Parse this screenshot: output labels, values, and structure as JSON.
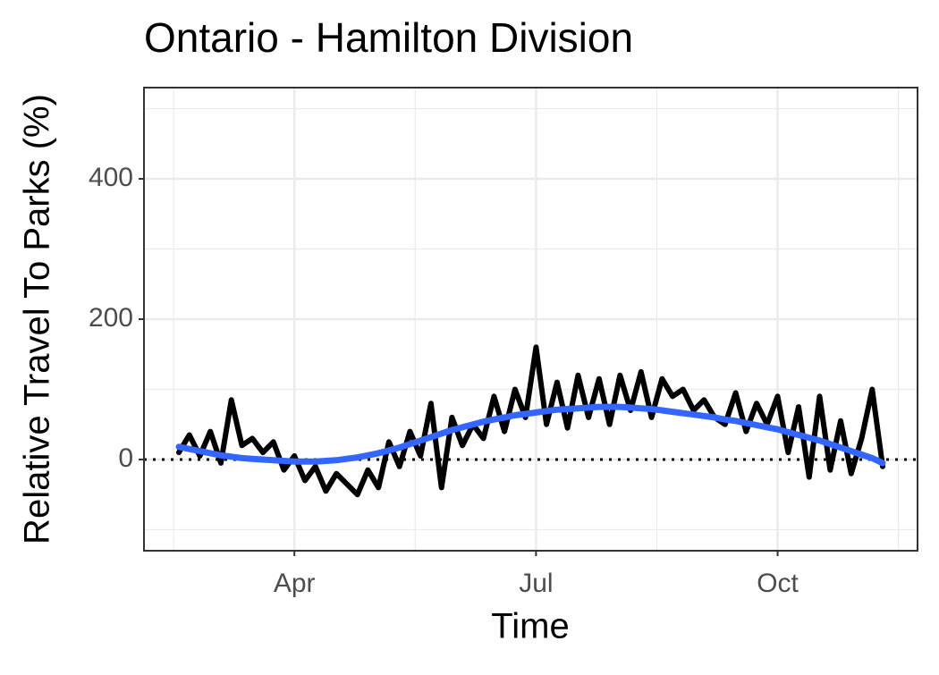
{
  "chart_data": {
    "type": "line",
    "title": "Ontario - Hamilton Division",
    "x_label": "Time",
    "y_label": "Relative Travel To Parks (%)",
    "categories": [
      null,
      null,
      null,
      null,
      null,
      null,
      null,
      null,
      null,
      null,
      null,
      "Apr",
      null,
      null,
      null,
      null,
      null,
      null,
      null,
      null,
      null,
      null,
      null,
      null,
      null,
      null,
      null,
      null,
      null,
      null,
      null,
      null,
      null,
      null,
      "Jul",
      null,
      null,
      null,
      null,
      null,
      null,
      null,
      null,
      null,
      null,
      null,
      null,
      null,
      null,
      null,
      null,
      null,
      null,
      null,
      null,
      null,
      null,
      "Oct",
      null,
      null,
      null,
      null,
      null,
      null,
      null,
      null,
      null,
      null
    ],
    "series": [
      {
        "color": "#000000",
        "values": [
          10,
          35,
          5,
          40,
          -5,
          85,
          20,
          30,
          10,
          25,
          -15,
          5,
          -30,
          -10,
          -45,
          -20,
          -35,
          -50,
          -15,
          -40,
          25,
          -10,
          40,
          5,
          80,
          -40,
          60,
          20,
          50,
          30,
          90,
          40,
          100,
          60,
          160,
          50,
          110,
          45,
          120,
          60,
          115,
          50,
          120,
          70,
          125,
          60,
          115,
          90,
          100,
          70,
          85,
          60,
          50,
          95,
          40,
          80,
          50,
          90,
          10,
          75,
          -25,
          90,
          -15,
          55,
          -20,
          30,
          100,
          -10
        ]
      },
      {
        "color": "#3366ff",
        "values": [
          18,
          15,
          12,
          9,
          6,
          4,
          2,
          1,
          0,
          -1,
          -2,
          -3,
          -3,
          -3,
          -2,
          -1,
          1,
          3,
          6,
          9,
          13,
          17,
          22,
          27,
          32,
          37,
          42,
          46,
          50,
          54,
          57,
          60,
          63,
          65,
          67,
          69,
          71,
          72,
          73,
          74,
          75,
          75,
          75,
          74,
          73,
          72,
          70,
          68,
          66,
          64,
          62,
          60,
          57,
          55,
          52,
          49,
          46,
          43,
          39,
          35,
          31,
          27,
          22,
          17,
          12,
          7,
          2,
          -5
        ]
      }
    ],
    "ylim": [
      -130,
      530
    ],
    "yticks": [
      0,
      200,
      400
    ],
    "reference_line": 0,
    "grid": true
  }
}
